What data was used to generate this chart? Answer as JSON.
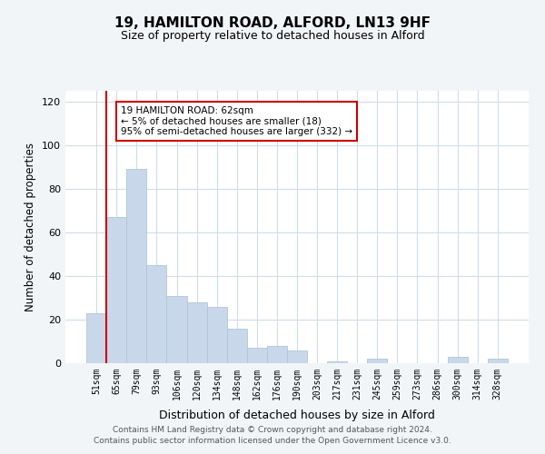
{
  "title": "19, HAMILTON ROAD, ALFORD, LN13 9HF",
  "subtitle": "Size of property relative to detached houses in Alford",
  "xlabel": "Distribution of detached houses by size in Alford",
  "ylabel": "Number of detached properties",
  "bin_labels": [
    "51sqm",
    "65sqm",
    "79sqm",
    "93sqm",
    "106sqm",
    "120sqm",
    "134sqm",
    "148sqm",
    "162sqm",
    "176sqm",
    "190sqm",
    "203sqm",
    "217sqm",
    "231sqm",
    "245sqm",
    "259sqm",
    "273sqm",
    "286sqm",
    "300sqm",
    "314sqm",
    "328sqm"
  ],
  "bar_heights": [
    23,
    67,
    89,
    45,
    31,
    28,
    26,
    16,
    7,
    8,
    6,
    0,
    1,
    0,
    2,
    0,
    0,
    0,
    3,
    0,
    2
  ],
  "bar_color": "#c8d8ea",
  "bar_edge_color": "#b0c4d8",
  "highlight_line_color": "#cc0000",
  "annotation_box_color": "#cc0000",
  "annotation_line1": "19 HAMILTON ROAD: 62sqm",
  "annotation_line2": "← 5% of detached houses are smaller (18)",
  "annotation_line3": "95% of semi-detached houses are larger (332) →",
  "ylim": [
    0,
    125
  ],
  "yticks": [
    0,
    20,
    40,
    60,
    80,
    100,
    120
  ],
  "footer_line1": "Contains HM Land Registry data © Crown copyright and database right 2024.",
  "footer_line2": "Contains public sector information licensed under the Open Government Licence v3.0.",
  "background_color": "#f2f5f8",
  "plot_bg_color": "#ffffff",
  "grid_color": "#d0dce8"
}
